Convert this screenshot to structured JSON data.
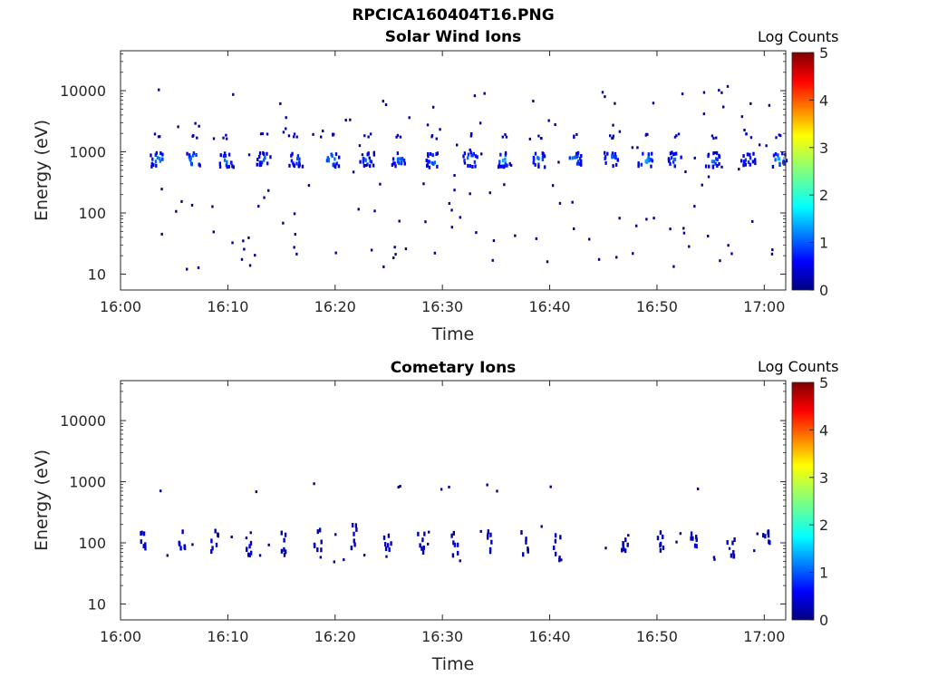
{
  "figure": {
    "file_title": "RPCICA160404T16.PNG"
  },
  "chart_data": [
    {
      "type": "heatmap",
      "title": "Solar Wind Ions",
      "xlabel": "Time",
      "ylabel": "Energy (eV)",
      "xlim": [
        "16:00",
        "17:02"
      ],
      "ylim": [
        5.5,
        45000
      ],
      "yscale": "log",
      "xticks": [
        "16:00",
        "16:10",
        "16:20",
        "16:30",
        "16:40",
        "16:50",
        "17:00"
      ],
      "yticks": [
        "10",
        "100",
        "1000",
        "10000"
      ],
      "colorbar": {
        "label": "Log Counts",
        "range": [
          0,
          5
        ],
        "ticks": [
          "0",
          "1",
          "2",
          "3",
          "4",
          "5"
        ],
        "colormap": "jet"
      },
      "grid": false,
      "blobs": [
        {
          "t": 3.4,
          "e": 800,
          "c": 1.5
        },
        {
          "t": 6.7,
          "e": 800,
          "c": 1.6
        },
        {
          "t": 9.8,
          "e": 780,
          "c": 1.4
        },
        {
          "t": 13.3,
          "e": 800,
          "c": 1.2
        },
        {
          "t": 16.3,
          "e": 800,
          "c": 1.2
        },
        {
          "t": 19.6,
          "e": 790,
          "c": 1.6
        },
        {
          "t": 22.9,
          "e": 800,
          "c": 1.3
        },
        {
          "t": 25.9,
          "e": 790,
          "c": 1.3
        },
        {
          "t": 29.1,
          "e": 780,
          "c": 1.4
        },
        {
          "t": 32.5,
          "e": 800,
          "c": 1.6
        },
        {
          "t": 35.6,
          "e": 790,
          "c": 1.6
        },
        {
          "t": 38.9,
          "e": 780,
          "c": 1.4
        },
        {
          "t": 42.2,
          "e": 790,
          "c": 1.5
        },
        {
          "t": 45.6,
          "e": 800,
          "c": 1.5
        },
        {
          "t": 48.8,
          "e": 790,
          "c": 1.7
        },
        {
          "t": 51.6,
          "e": 800,
          "c": 1.2
        },
        {
          "t": 55.1,
          "e": 780,
          "c": 1.4
        },
        {
          "t": 58.4,
          "e": 790,
          "c": 1.1
        },
        {
          "t": 61.3,
          "e": 800,
          "c": 1.6
        }
      ]
    },
    {
      "type": "heatmap",
      "title": "Cometary Ions",
      "xlabel": "Time",
      "ylabel": "Energy (eV)",
      "xlim": [
        "16:00",
        "17:02"
      ],
      "ylim": [
        5.5,
        45000
      ],
      "yscale": "log",
      "xticks": [
        "16:00",
        "16:10",
        "16:20",
        "16:30",
        "16:40",
        "16:50",
        "17:00"
      ],
      "yticks": [
        "10",
        "100",
        "1000",
        "10000"
      ],
      "colorbar": {
        "label": "Log Counts",
        "range": [
          0,
          5
        ],
        "ticks": [
          "0",
          "1",
          "2",
          "3",
          "4",
          "5"
        ],
        "colormap": "jet"
      },
      "grid": false,
      "blobs": [
        {
          "t": 2.1,
          "e": 120,
          "c": 0.5
        },
        {
          "t": 5.6,
          "e": 110,
          "c": 0.5
        },
        {
          "t": 8.7,
          "e": 110,
          "c": 0.5
        },
        {
          "t": 11.8,
          "e": 90,
          "c": 0.5
        },
        {
          "t": 15.2,
          "e": 110,
          "c": 0.4
        },
        {
          "t": 18.3,
          "e": 120,
          "c": 0.4
        },
        {
          "t": 21.6,
          "e": 140,
          "c": 0.5
        },
        {
          "t": 24.8,
          "e": 100,
          "c": 0.5
        },
        {
          "t": 27.9,
          "e": 120,
          "c": 0.5
        },
        {
          "t": 31.0,
          "e": 100,
          "c": 0.5
        },
        {
          "t": 34.4,
          "e": 110,
          "c": 0.4
        },
        {
          "t": 37.6,
          "e": 110,
          "c": 0.4
        },
        {
          "t": 40.6,
          "e": 90,
          "c": 0.4
        },
        {
          "t": 46.9,
          "e": 90,
          "c": 0.4
        },
        {
          "t": 50.2,
          "e": 110,
          "c": 0.5
        },
        {
          "t": 53.4,
          "e": 100,
          "c": 0.5
        },
        {
          "t": 56.8,
          "e": 100,
          "c": 0.5
        },
        {
          "t": 60.1,
          "e": 110,
          "c": 0.5
        }
      ]
    }
  ]
}
